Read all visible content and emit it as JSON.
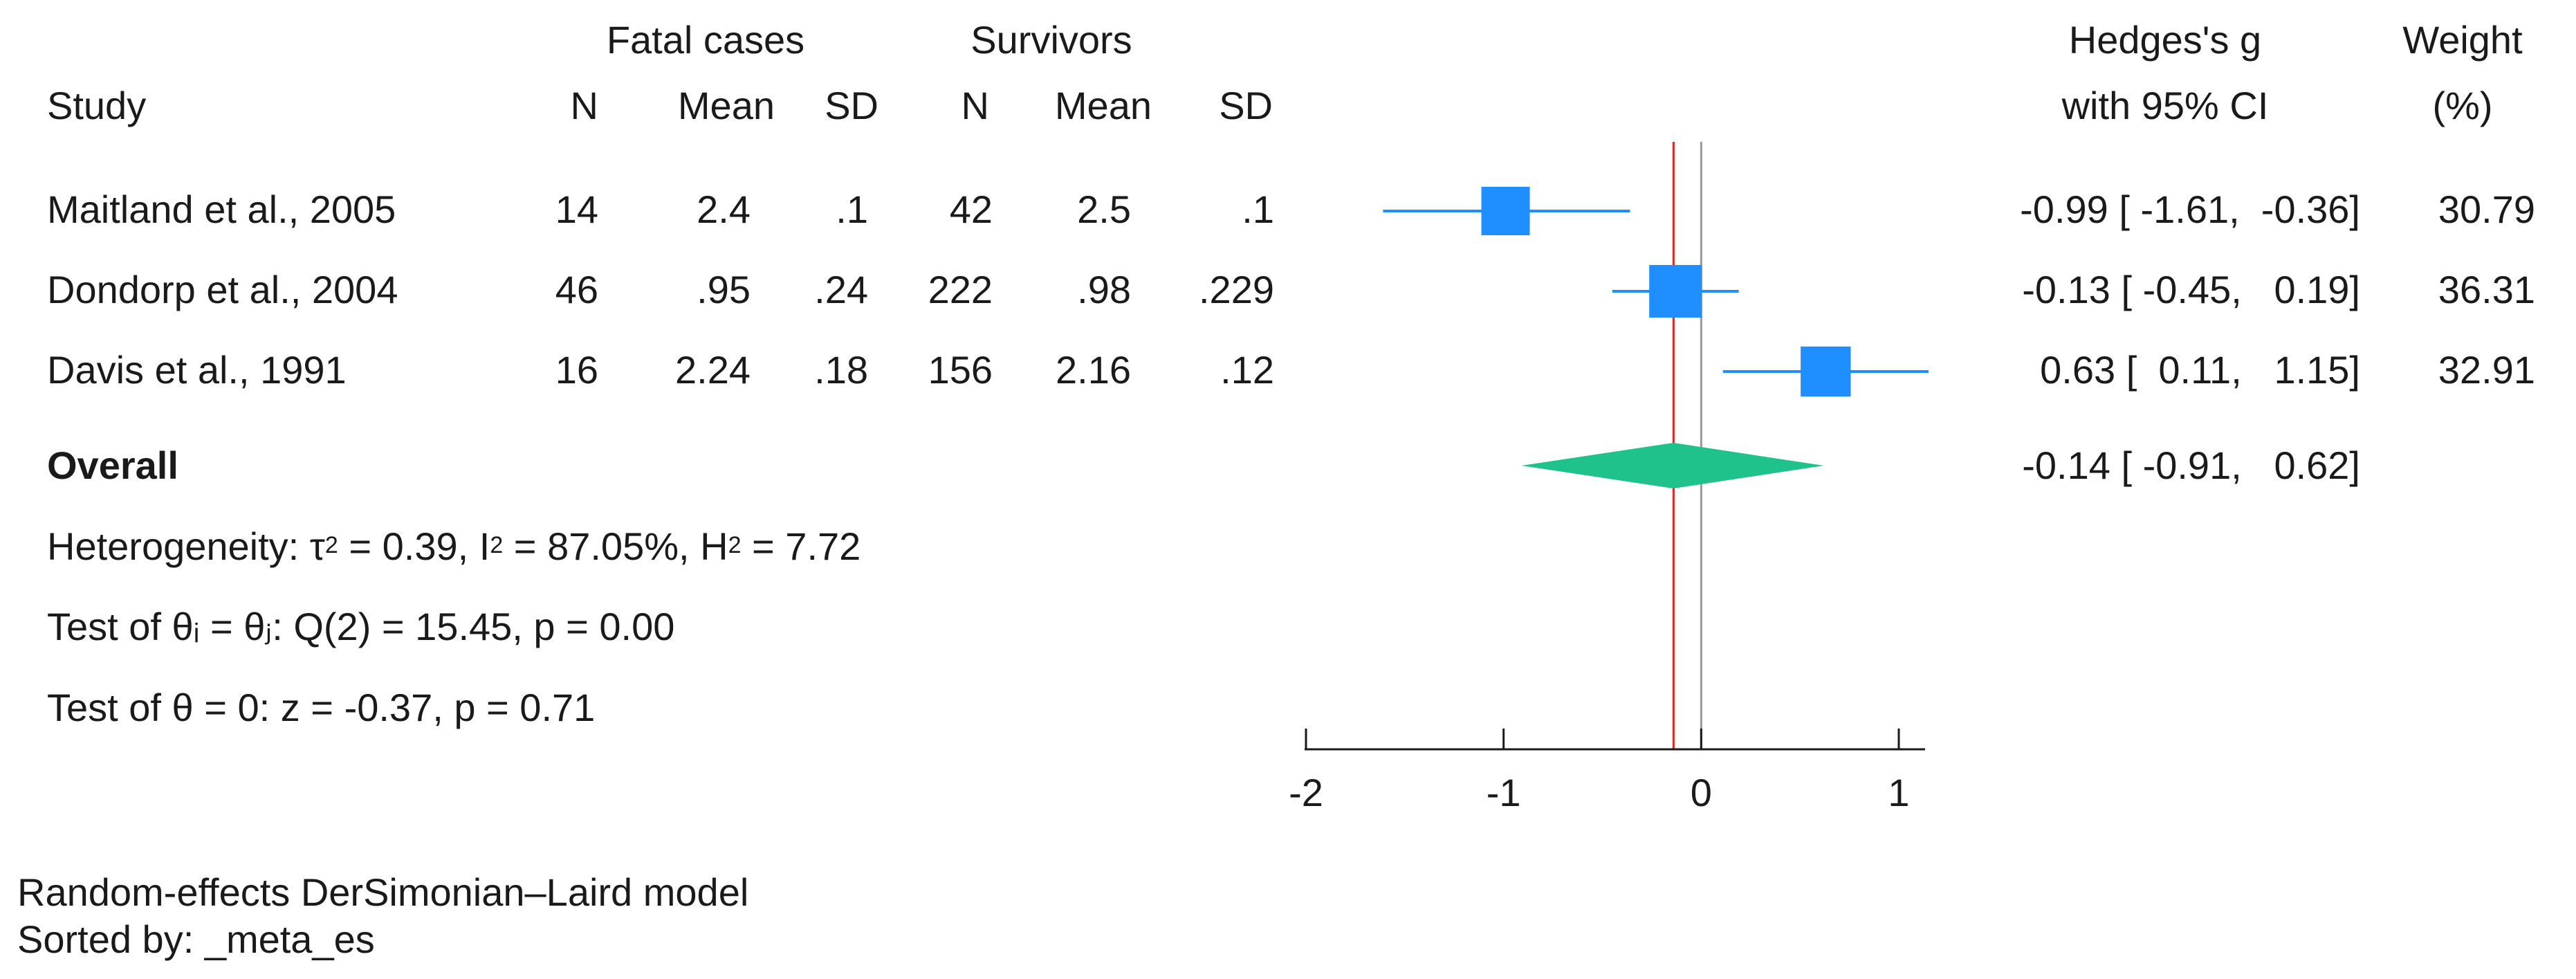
{
  "chart_data": {
    "type": "forest",
    "header": {
      "fatal_cases": "Fatal cases",
      "survivors": "Survivors",
      "study": "Study",
      "n": "N",
      "mean": "Mean",
      "sd": "SD",
      "effect_line1": "Hedges's g",
      "effect_line2": "with 95% CI",
      "weight_line1": "Weight",
      "weight_line2": "(%)"
    },
    "studies": [
      {
        "name": "Maitland et al., 2005",
        "n1": "14",
        "mean1": "2.4",
        "sd1": ".1",
        "n2": "42",
        "mean2": "2.5",
        "sd2": ".1",
        "es": -0.99,
        "lo": -1.61,
        "hi": -0.36,
        "weight": 30.79,
        "ci_text": "-0.99 [ -1.61,  -0.36]",
        "weight_text": "30.79"
      },
      {
        "name": "Dondorp et al., 2004",
        "n1": "46",
        "mean1": ".95",
        "sd1": ".24",
        "n2": "222",
        "mean2": ".98",
        "sd2": ".229",
        "es": -0.13,
        "lo": -0.45,
        "hi": 0.19,
        "weight": 36.31,
        "ci_text": "-0.13 [ -0.45,   0.19]",
        "weight_text": "36.31"
      },
      {
        "name": "Davis et al., 1991",
        "n1": "16",
        "mean1": "2.24",
        "sd1": ".18",
        "n2": "156",
        "mean2": "2.16",
        "sd2": ".12",
        "es": 0.63,
        "lo": 0.11,
        "hi": 1.15,
        "weight": 32.91,
        "ci_text": "0.63 [  0.11,   1.15]",
        "weight_text": "32.91"
      }
    ],
    "overall": {
      "label": "Overall",
      "es": -0.14,
      "lo": -0.91,
      "hi": 0.62,
      "ci_text": "-0.14 [ -0.91,   0.62]"
    },
    "heterogeneity": {
      "prefix": "Heterogeneity: τ",
      "tau_exp": "2",
      "tau_val": " = 0.39, I",
      "i_exp": "2",
      "i_val": " = 87.05%, H",
      "h_exp": "2",
      "h_val": " = 7.72"
    },
    "test_homogeneity": "Test of θᵢ = θⱼ: Q(2) = 15.45, p = 0.00",
    "test_effect": "Test of θ = 0: z = -0.37, p = 0.71",
    "x_axis": {
      "range": [
        -2,
        1
      ],
      "ticks": [
        -2,
        -1,
        0,
        1
      ],
      "tick_labels": [
        "-2",
        "-1",
        "0",
        "1"
      ]
    },
    "reference_line": 0,
    "overall_line": -0.14,
    "footnote1": "Random-effects DerSimonian–Laird model",
    "footnote2": "Sorted by: _meta_es",
    "colors": {
      "marker": "#1f8fff",
      "diamond": "#1fc28a",
      "overall_line": "#d62828",
      "ref_line": "#999999",
      "axis": "#1a1a1a"
    }
  }
}
